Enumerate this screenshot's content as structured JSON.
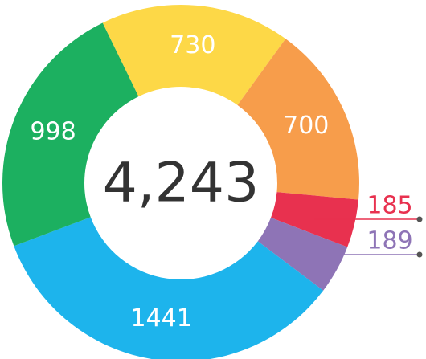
{
  "chart_data": {
    "type": "donut",
    "center_label": "4,243",
    "categories": [
      null,
      null,
      null,
      null,
      null,
      null
    ],
    "values": [
      730,
      700,
      185,
      189,
      1441,
      998
    ],
    "colors": [
      "#fdd847",
      "#f79d4b",
      "#e8314f",
      "#8e74b6",
      "#1db4ec",
      "#1cb060"
    ]
  }
}
